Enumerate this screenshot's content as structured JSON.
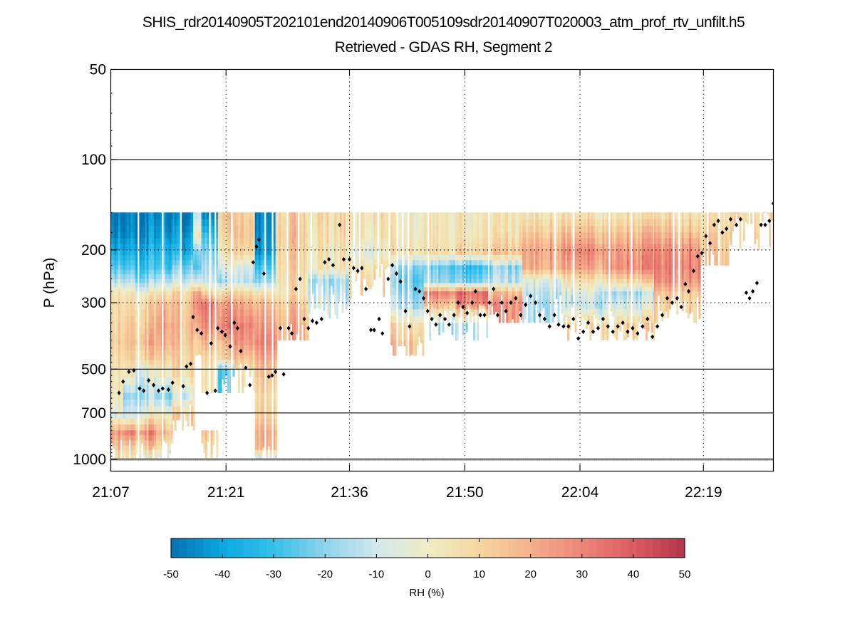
{
  "chart_data": {
    "type": "heatmap",
    "title": "SHIS_rdr20140905T202101end20140906T005109sdr20140907T020003_atm_prof_rtv_unfilt.h5",
    "subtitle": "Retrieved - GDAS RH, Segment 2",
    "xlabel": "",
    "ylabel": "P (hPa)",
    "y_scale": "log",
    "y_reversed": true,
    "ylim": [
      50,
      1000
    ],
    "y_ticks": [
      50,
      100,
      200,
      300,
      500,
      700,
      1000
    ],
    "y_tick_labels": [
      "50",
      "100",
      "200",
      "300",
      "500",
      "700",
      "1000"
    ],
    "xlim_minutes": [
      0,
      80.5
    ],
    "x_ticks_minutes": [
      0,
      14,
      29,
      43,
      57,
      72
    ],
    "x_tick_labels": [
      "21:07",
      "21:21",
      "21:36",
      "21:50",
      "22:04",
      "22:19"
    ],
    "grid": "dotted",
    "colorbar": {
      "label": "RH (%)",
      "range": [
        -50,
        50
      ],
      "ticks": [
        -50,
        -40,
        -30,
        -20,
        -10,
        0,
        10,
        20,
        30,
        40,
        50
      ],
      "tick_labels": [
        "-50",
        "-40",
        "-30",
        "-20",
        "-10",
        "0",
        "10",
        "20",
        "30",
        "40",
        "50"
      ],
      "colors": [
        "#0571b0",
        "#0aa8e0",
        "#35c0ea",
        "#8fd3ec",
        "#d2e8ee",
        "#f0ecc4",
        "#f5d7a0",
        "#f4b18c",
        "#ed8578",
        "#dc5c62",
        "#b2344a"
      ],
      "placement": "bottom"
    },
    "pressure_levels_hPa": [
      150,
      175,
      200,
      225,
      250,
      275,
      300,
      350,
      400,
      450,
      500,
      600,
      700,
      800,
      900,
      1000
    ],
    "segments": [
      {
        "t0": 0.0,
        "t1": 1.5,
        "bottom_hPa": 1000,
        "rh": [
          -48,
          -45,
          -35,
          -25,
          -12,
          5,
          8,
          10,
          12,
          8,
          5,
          3,
          -5,
          25,
          15,
          5
        ]
      },
      {
        "t0": 1.5,
        "t1": 3.0,
        "bottom_hPa": 1000,
        "rh": [
          -48,
          -46,
          -38,
          -28,
          -15,
          3,
          7,
          12,
          14,
          10,
          2,
          -20,
          -10,
          30,
          10,
          0
        ]
      },
      {
        "t0": 3.0,
        "t1": 5.5,
        "bottom_hPa": 1000,
        "rh": [
          -48,
          -44,
          -36,
          -30,
          -18,
          2,
          10,
          15,
          18,
          12,
          -5,
          -15,
          0,
          28,
          12,
          -5
        ]
      },
      {
        "t0": 5.5,
        "t1": 7.5,
        "bottom_hPa": 1000,
        "rh": [
          -45,
          -40,
          -32,
          -26,
          -12,
          8,
          20,
          25,
          22,
          15,
          5,
          -18,
          5,
          20,
          8,
          -10
        ]
      },
      {
        "t0": 7.5,
        "t1": 10.0,
        "bottom_hPa": 760,
        "rh": [
          -48,
          -42,
          -35,
          -22,
          -10,
          10,
          15,
          18,
          16,
          12,
          8,
          -8,
          12,
          null,
          null,
          null
        ]
      },
      {
        "t0": 10.0,
        "t1": 11.0,
        "bottom_hPa": 480,
        "rh": [
          -10,
          5,
          -20,
          -25,
          -8,
          25,
          30,
          22,
          12,
          null,
          null,
          null,
          null,
          null,
          null,
          null
        ]
      },
      {
        "t0": 11.0,
        "t1": 13.0,
        "bottom_hPa": 1000,
        "rh": [
          -45,
          -30,
          -20,
          -15,
          -10,
          12,
          35,
          30,
          20,
          10,
          5,
          null,
          null,
          15,
          10,
          5
        ]
      },
      {
        "t0": 13.0,
        "t1": 15.0,
        "bottom_hPa": 600,
        "rh": [
          15,
          10,
          5,
          -5,
          -15,
          10,
          25,
          32,
          18,
          12,
          -25,
          null,
          null,
          null,
          null,
          null
        ]
      },
      {
        "t0": 15.0,
        "t1": 17.5,
        "bottom_hPa": 550,
        "rh": [
          10,
          12,
          8,
          -10,
          -15,
          8,
          20,
          28,
          24,
          14,
          5,
          null,
          null,
          null,
          null,
          null
        ]
      },
      {
        "t0": 17.5,
        "t1": 20.0,
        "bottom_hPa": 1000,
        "rh": [
          -48,
          -46,
          -44,
          -30,
          -20,
          5,
          18,
          25,
          30,
          22,
          15,
          8,
          12,
          20,
          18,
          -20
        ]
      },
      {
        "t0": 20.0,
        "t1": 24.0,
        "bottom_hPa": 400,
        "rh": [
          12,
          14,
          12,
          10,
          8,
          6,
          15,
          20,
          null,
          null,
          null,
          null,
          null,
          null,
          null,
          null
        ]
      },
      {
        "t0": 24.0,
        "t1": 29.0,
        "bottom_hPa": 300,
        "rh": [
          8,
          6,
          4,
          3,
          -15,
          -12,
          -8,
          null,
          null,
          null,
          null,
          null,
          null,
          null,
          null,
          null
        ]
      },
      {
        "t0": 29.0,
        "t1": 34.0,
        "bottom_hPa": 260,
        "rh": [
          4,
          3,
          -5,
          5,
          10,
          12,
          null,
          null,
          null,
          null,
          null,
          null,
          null,
          null,
          null,
          null
        ]
      },
      {
        "t0": 34.0,
        "t1": 38.0,
        "bottom_hPa": 450,
        "rh": [
          0,
          2,
          5,
          -20,
          -25,
          -20,
          -15,
          8,
          15,
          null,
          null,
          null,
          null,
          null,
          null,
          null
        ]
      },
      {
        "t0": 38.0,
        "t1": 42.0,
        "bottom_hPa": 360,
        "rh": [
          2,
          3,
          5,
          -25,
          -20,
          30,
          15,
          -18,
          null,
          null,
          null,
          null,
          null,
          null,
          null,
          null
        ]
      },
      {
        "t0": 42.0,
        "t1": 46.0,
        "bottom_hPa": 360,
        "rh": [
          3,
          4,
          10,
          -30,
          -22,
          35,
          28,
          -15,
          null,
          null,
          null,
          null,
          null,
          null,
          null,
          null
        ]
      },
      {
        "t0": 46.0,
        "t1": 50.0,
        "bottom_hPa": 330,
        "rh": [
          2,
          5,
          12,
          -20,
          -15,
          15,
          25,
          null,
          null,
          null,
          null,
          null,
          null,
          null,
          null,
          null
        ]
      },
      {
        "t0": 50.0,
        "t1": 55.0,
        "bottom_hPa": 330,
        "rh": [
          5,
          15,
          22,
          20,
          -5,
          -12,
          -15,
          null,
          null,
          null,
          null,
          null,
          null,
          null,
          null,
          null
        ]
      },
      {
        "t0": 55.0,
        "t1": 60.0,
        "bottom_hPa": 360,
        "rh": [
          5,
          18,
          28,
          22,
          5,
          -8,
          -12,
          10,
          null,
          null,
          null,
          null,
          null,
          null,
          null,
          null
        ]
      },
      {
        "t0": 60.0,
        "t1": 66.0,
        "bottom_hPa": 370,
        "rh": [
          6,
          18,
          26,
          28,
          10,
          -15,
          -8,
          12,
          null,
          null,
          null,
          null,
          null,
          null,
          null,
          null
        ]
      },
      {
        "t0": 66.0,
        "t1": 71.5,
        "bottom_hPa": 330,
        "rh": [
          8,
          20,
          30,
          32,
          28,
          15,
          12,
          null,
          null,
          null,
          null,
          null,
          null,
          null,
          null,
          null
        ]
      },
      {
        "t0": 71.5,
        "t1": 75.0,
        "bottom_hPa": 230,
        "rh": [
          5,
          12,
          15,
          null,
          null,
          null,
          null,
          null,
          null,
          null,
          null,
          null,
          null,
          null,
          null,
          null
        ]
      },
      {
        "t0": 75.0,
        "t1": 80.5,
        "bottom_hPa": 175,
        "rh": [
          8,
          12,
          null,
          null,
          null,
          null,
          null,
          null,
          null,
          null,
          null,
          null,
          null,
          null,
          null,
          null
        ]
      }
    ],
    "cloud_top_markers": {
      "marker": "diamond",
      "color": "#000000",
      "points_minutes_hPa": [
        [
          1.0,
          600
        ],
        [
          1.5,
          550
        ],
        [
          2.2,
          510
        ],
        [
          2.8,
          505
        ],
        [
          3.5,
          580
        ],
        [
          4.0,
          590
        ],
        [
          4.6,
          545
        ],
        [
          5.2,
          565
        ],
        [
          5.8,
          590
        ],
        [
          6.3,
          580
        ],
        [
          7.0,
          585
        ],
        [
          7.5,
          555
        ],
        [
          8.8,
          570
        ],
        [
          9.2,
          490
        ],
        [
          9.7,
          480
        ],
        [
          10.0,
          335
        ],
        [
          10.5,
          370
        ],
        [
          11.0,
          380
        ],
        [
          11.7,
          600
        ],
        [
          12.2,
          410
        ],
        [
          12.7,
          590
        ],
        [
          13.0,
          365
        ],
        [
          13.5,
          375
        ],
        [
          13.9,
          385
        ],
        [
          14.5,
          420
        ],
        [
          15.0,
          350
        ],
        [
          15.4,
          365
        ],
        [
          15.8,
          435
        ],
        [
          16.4,
          495
        ],
        [
          16.9,
          565
        ],
        [
          17.3,
          220
        ],
        [
          17.7,
          195
        ],
        [
          18.0,
          185
        ],
        [
          18.6,
          240
        ],
        [
          19.2,
          530
        ],
        [
          19.6,
          525
        ],
        [
          20.0,
          510
        ],
        [
          20.6,
          365
        ],
        [
          21.0,
          520
        ],
        [
          21.6,
          365
        ],
        [
          22.0,
          380
        ],
        [
          22.5,
          270
        ],
        [
          23.0,
          250
        ],
        [
          23.5,
          340
        ],
        [
          24.0,
          365
        ],
        [
          24.5,
          345
        ],
        [
          25.0,
          350
        ],
        [
          25.6,
          340
        ],
        [
          26.0,
          220
        ],
        [
          26.5,
          215
        ],
        [
          27.0,
          225
        ],
        [
          27.8,
          165
        ],
        [
          28.3,
          215
        ],
        [
          29.0,
          215
        ],
        [
          29.5,
          230
        ],
        [
          30.0,
          235
        ],
        [
          30.5,
          230
        ],
        [
          31.0,
          270
        ],
        [
          31.6,
          370
        ],
        [
          32.0,
          370
        ],
        [
          32.6,
          340
        ],
        [
          33.0,
          380
        ],
        [
          33.7,
          250
        ],
        [
          34.2,
          225
        ],
        [
          34.7,
          240
        ],
        [
          35.2,
          255
        ],
        [
          35.8,
          320
        ],
        [
          36.3,
          360
        ],
        [
          37.0,
          270
        ],
        [
          37.5,
          275
        ],
        [
          38.0,
          290
        ],
        [
          38.5,
          320
        ],
        [
          39.0,
          340
        ],
        [
          39.5,
          355
        ],
        [
          40.0,
          330
        ],
        [
          40.6,
          340
        ],
        [
          41.1,
          355
        ],
        [
          41.7,
          330
        ],
        [
          42.2,
          300
        ],
        [
          42.8,
          310
        ],
        [
          43.3,
          325
        ],
        [
          43.9,
          300
        ],
        [
          44.3,
          275
        ],
        [
          44.9,
          330
        ],
        [
          45.4,
          330
        ],
        [
          46.0,
          300
        ],
        [
          46.5,
          270
        ],
        [
          47.0,
          330
        ],
        [
          47.5,
          300
        ],
        [
          48.0,
          320
        ],
        [
          48.6,
          300
        ],
        [
          49.2,
          290
        ],
        [
          49.8,
          330
        ],
        [
          50.4,
          305
        ],
        [
          51.0,
          285
        ],
        [
          51.6,
          300
        ],
        [
          52.1,
          330
        ],
        [
          52.7,
          340
        ],
        [
          53.3,
          360
        ],
        [
          53.9,
          330
        ],
        [
          54.4,
          355
        ],
        [
          55.0,
          360
        ],
        [
          55.6,
          360
        ],
        [
          56.2,
          340
        ],
        [
          56.8,
          395
        ],
        [
          57.4,
          375
        ],
        [
          58.0,
          350
        ],
        [
          58.6,
          375
        ],
        [
          59.2,
          365
        ],
        [
          59.8,
          340
        ],
        [
          60.4,
          360
        ],
        [
          61.0,
          375
        ],
        [
          61.6,
          360
        ],
        [
          62.2,
          350
        ],
        [
          62.8,
          375
        ],
        [
          63.4,
          365
        ],
        [
          64.0,
          380
        ],
        [
          64.6,
          360
        ],
        [
          65.2,
          340
        ],
        [
          65.8,
          390
        ],
        [
          66.4,
          360
        ],
        [
          67.0,
          330
        ],
        [
          67.6,
          290
        ],
        [
          68.2,
          300
        ],
        [
          68.8,
          290
        ],
        [
          69.3,
          310
        ],
        [
          69.8,
          260
        ],
        [
          70.2,
          275
        ],
        [
          70.8,
          235
        ],
        [
          71.3,
          210
        ],
        [
          71.8,
          205
        ],
        [
          72.3,
          180
        ],
        [
          72.8,
          190
        ],
        [
          73.3,
          165
        ],
        [
          73.8,
          160
        ],
        [
          74.3,
          175
        ],
        [
          74.8,
          170
        ],
        [
          75.3,
          158
        ],
        [
          76.0,
          165
        ],
        [
          76.5,
          158
        ],
        [
          77.2,
          278
        ],
        [
          77.6,
          290
        ],
        [
          78.0,
          275
        ],
        [
          78.5,
          258
        ],
        [
          79.0,
          165
        ],
        [
          79.5,
          165
        ],
        [
          80.0,
          160
        ],
        [
          80.5,
          140
        ]
      ]
    },
    "surface_marker_pressure_hPa": 1000
  }
}
